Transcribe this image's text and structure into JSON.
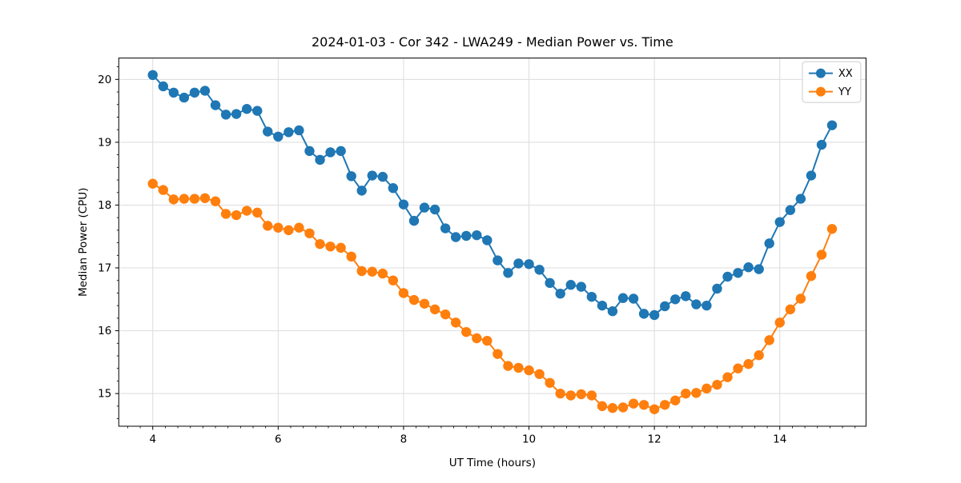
{
  "figure": {
    "background": "#ffffff",
    "text_color": "#000000",
    "grid_color": "#dcdcdc",
    "spine_color": "#000000"
  },
  "chart_data": {
    "type": "line",
    "title": "2024-01-03 - Cor 342 - LWA249 - Median Power vs. Time",
    "xlabel": "UT Time (hours)",
    "ylabel": "Median Power (CPU)",
    "xlim": [
      3.458,
      15.375
    ],
    "ylim": [
      14.48,
      20.34
    ],
    "x_major_ticks": [
      4,
      6,
      8,
      10,
      12,
      14
    ],
    "y_major_ticks": [
      15,
      16,
      17,
      18,
      19,
      20
    ],
    "x_minor_step": 0.2,
    "y_minor_step": 0.2,
    "grid": "major",
    "legend_position": "upper right",
    "marker": "circle",
    "x": [
      4,
      4.167,
      4.333,
      4.5,
      4.667,
      4.833,
      5,
      5.167,
      5.333,
      5.5,
      5.667,
      5.833,
      6,
      6.167,
      6.333,
      6.5,
      6.667,
      6.833,
      7,
      7.167,
      7.333,
      7.5,
      7.667,
      7.833,
      8,
      8.167,
      8.333,
      8.5,
      8.667,
      8.833,
      9,
      9.167,
      9.333,
      9.5,
      9.667,
      9.833,
      10,
      10.167,
      10.333,
      10.5,
      10.667,
      10.833,
      11,
      11.167,
      11.333,
      11.5,
      11.667,
      11.833,
      12,
      12.167,
      12.333,
      12.5,
      12.667,
      12.833,
      13,
      13.167,
      13.333,
      13.5,
      13.667,
      13.833,
      14,
      14.167,
      14.333,
      14.5,
      14.667,
      14.833
    ],
    "series": [
      {
        "name": "XX",
        "color": "#1f77b4",
        "values": [
          20.07,
          19.89,
          19.79,
          19.71,
          19.79,
          19.82,
          19.59,
          19.44,
          19.45,
          19.53,
          19.5,
          19.17,
          19.09,
          19.16,
          19.19,
          18.86,
          18.72,
          18.84,
          18.86,
          18.46,
          18.23,
          18.47,
          18.45,
          18.27,
          18.01,
          17.75,
          17.96,
          17.93,
          17.63,
          17.49,
          17.51,
          17.52,
          17.44,
          17.12,
          16.92,
          17.07,
          17.06,
          16.97,
          16.76,
          16.59,
          16.73,
          16.7,
          16.54,
          16.4,
          16.31,
          16.52,
          16.51,
          16.27,
          16.25,
          16.39,
          16.5,
          16.55,
          16.42,
          16.4,
          16.67,
          16.86,
          16.92,
          17.01,
          16.98,
          17.39,
          17.73,
          17.92,
          18.1,
          18.47,
          18.96,
          19.27
        ]
      },
      {
        "name": "YY",
        "color": "#ff7f0e",
        "values": [
          18.34,
          18.24,
          18.09,
          18.1,
          18.1,
          18.11,
          18.06,
          17.86,
          17.84,
          17.91,
          17.88,
          17.67,
          17.64,
          17.6,
          17.64,
          17.55,
          17.38,
          17.34,
          17.32,
          17.18,
          16.95,
          16.94,
          16.91,
          16.8,
          16.6,
          16.49,
          16.43,
          16.34,
          16.26,
          16.13,
          15.98,
          15.88,
          15.84,
          15.63,
          15.44,
          15.41,
          15.37,
          15.31,
          15.17,
          15.0,
          14.97,
          14.99,
          14.97,
          14.8,
          14.77,
          14.78,
          14.84,
          14.82,
          14.75,
          14.82,
          14.89,
          15.0,
          15.01,
          15.08,
          15.14,
          15.26,
          15.4,
          15.47,
          15.61,
          15.85,
          16.13,
          16.34,
          16.51,
          16.87,
          17.21,
          17.62
        ]
      }
    ]
  }
}
